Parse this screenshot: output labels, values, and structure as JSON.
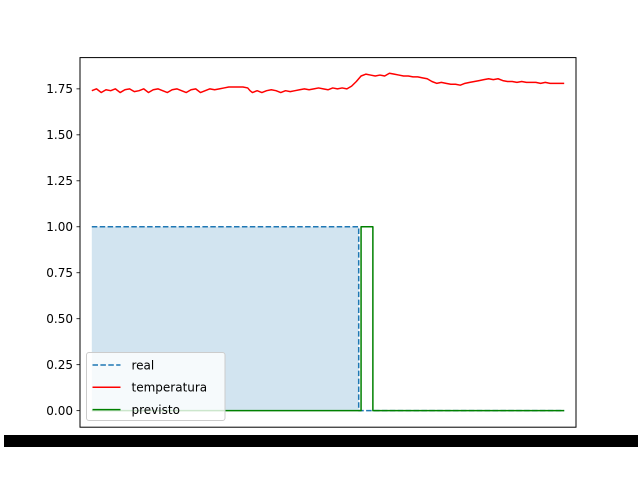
{
  "chart_data": {
    "type": "line",
    "title": "",
    "xlabel": "",
    "ylabel": "",
    "ylim": [
      -0.09,
      1.92
    ],
    "yticks": [
      0.0,
      0.25,
      0.5,
      0.75,
      1.0,
      1.25,
      1.5,
      1.75
    ],
    "ytick_labels": [
      "0.00",
      "0.25",
      "0.50",
      "0.75",
      "1.00",
      "1.25",
      "1.50",
      "1.75"
    ],
    "xlim": [
      -5,
      205
    ],
    "x_ticks_note": "x tick labels overlap into an unreadable black band",
    "grid": false,
    "legend_position": "lower-left",
    "series": [
      {
        "name": "real",
        "color": "#1f77b4",
        "style": "dashed",
        "fill": true,
        "fill_color": "#1f77b4",
        "fill_alpha": 0.2,
        "points": [
          [
            0,
            1.0
          ],
          [
            113,
            1.0
          ],
          [
            113,
            0.0
          ],
          [
            200,
            0.0
          ]
        ]
      },
      {
        "name": "temperatura",
        "color": "#ff0000",
        "style": "solid",
        "points": [
          [
            0,
            1.74
          ],
          [
            2,
            1.75
          ],
          [
            4,
            1.73
          ],
          [
            6,
            1.745
          ],
          [
            8,
            1.74
          ],
          [
            10,
            1.75
          ],
          [
            12,
            1.73
          ],
          [
            14,
            1.745
          ],
          [
            16,
            1.75
          ],
          [
            18,
            1.735
          ],
          [
            20,
            1.74
          ],
          [
            22,
            1.75
          ],
          [
            24,
            1.73
          ],
          [
            26,
            1.745
          ],
          [
            28,
            1.75
          ],
          [
            30,
            1.74
          ],
          [
            32,
            1.73
          ],
          [
            34,
            1.745
          ],
          [
            36,
            1.75
          ],
          [
            38,
            1.74
          ],
          [
            40,
            1.73
          ],
          [
            42,
            1.745
          ],
          [
            44,
            1.75
          ],
          [
            46,
            1.73
          ],
          [
            48,
            1.74
          ],
          [
            50,
            1.75
          ],
          [
            52,
            1.745
          ],
          [
            54,
            1.75
          ],
          [
            56,
            1.755
          ],
          [
            58,
            1.76
          ],
          [
            60,
            1.76
          ],
          [
            62,
            1.76
          ],
          [
            64,
            1.76
          ],
          [
            66,
            1.755
          ],
          [
            67,
            1.74
          ],
          [
            68,
            1.73
          ],
          [
            70,
            1.74
          ],
          [
            72,
            1.73
          ],
          [
            74,
            1.74
          ],
          [
            76,
            1.745
          ],
          [
            78,
            1.74
          ],
          [
            80,
            1.73
          ],
          [
            82,
            1.74
          ],
          [
            84,
            1.735
          ],
          [
            86,
            1.74
          ],
          [
            88,
            1.745
          ],
          [
            90,
            1.75
          ],
          [
            92,
            1.745
          ],
          [
            94,
            1.75
          ],
          [
            96,
            1.755
          ],
          [
            98,
            1.75
          ],
          [
            100,
            1.745
          ],
          [
            102,
            1.755
          ],
          [
            104,
            1.75
          ],
          [
            106,
            1.755
          ],
          [
            108,
            1.75
          ],
          [
            110,
            1.765
          ],
          [
            112,
            1.79
          ],
          [
            114,
            1.82
          ],
          [
            116,
            1.83
          ],
          [
            118,
            1.825
          ],
          [
            120,
            1.82
          ],
          [
            122,
            1.825
          ],
          [
            124,
            1.82
          ],
          [
            126,
            1.835
          ],
          [
            128,
            1.83
          ],
          [
            130,
            1.825
          ],
          [
            132,
            1.82
          ],
          [
            134,
            1.82
          ],
          [
            136,
            1.815
          ],
          [
            138,
            1.815
          ],
          [
            140,
            1.81
          ],
          [
            142,
            1.805
          ],
          [
            144,
            1.79
          ],
          [
            146,
            1.78
          ],
          [
            148,
            1.785
          ],
          [
            150,
            1.78
          ],
          [
            152,
            1.775
          ],
          [
            154,
            1.775
          ],
          [
            156,
            1.77
          ],
          [
            158,
            1.78
          ],
          [
            160,
            1.785
          ],
          [
            162,
            1.79
          ],
          [
            164,
            1.795
          ],
          [
            166,
            1.8
          ],
          [
            168,
            1.805
          ],
          [
            170,
            1.8
          ],
          [
            172,
            1.805
          ],
          [
            174,
            1.795
          ],
          [
            176,
            1.79
          ],
          [
            178,
            1.79
          ],
          [
            180,
            1.785
          ],
          [
            182,
            1.79
          ],
          [
            184,
            1.785
          ],
          [
            186,
            1.785
          ],
          [
            188,
            1.785
          ],
          [
            190,
            1.78
          ],
          [
            192,
            1.785
          ],
          [
            194,
            1.78
          ],
          [
            196,
            1.78
          ],
          [
            198,
            1.78
          ],
          [
            200,
            1.78
          ]
        ]
      },
      {
        "name": "previsto",
        "color": "#008000",
        "style": "solid",
        "points": [
          [
            0,
            0.0
          ],
          [
            114,
            0.0
          ],
          [
            114,
            1.0
          ],
          [
            119,
            1.0
          ],
          [
            119,
            0.0
          ],
          [
            200,
            0.0
          ]
        ]
      }
    ]
  }
}
